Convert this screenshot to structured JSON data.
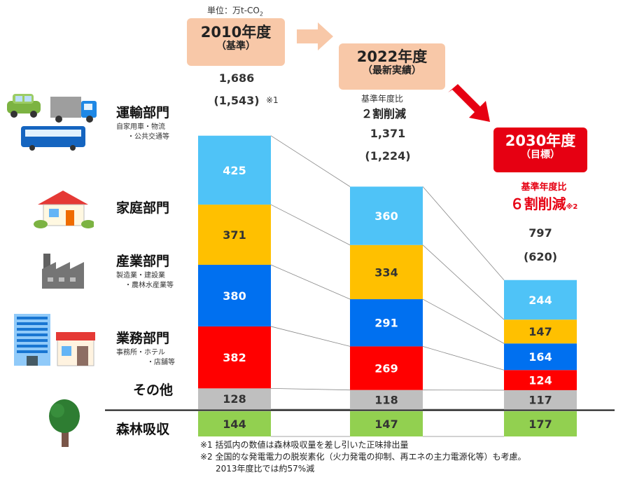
{
  "unit_label": "単位：万t-CO",
  "unit_sub": "2",
  "headers": {
    "y2010": {
      "title": "2010年度",
      "sub": "（基準）"
    },
    "y2022": {
      "title": "2022年度",
      "sub": "（最新実績）"
    },
    "y2030": {
      "title": "2030年度",
      "sub": "（目標）"
    }
  },
  "reduction_2022": {
    "line1": "基準年度比",
    "line2": "２割削減"
  },
  "reduction_2030": {
    "line1": "基準年度比",
    "line2": "６割削減",
    "mark": "※2"
  },
  "totals": {
    "y2010": {
      "gross": "1,686",
      "net": "(1,543)",
      "mark": "※1"
    },
    "y2022": {
      "gross": "1,371",
      "net": "(1,224)"
    },
    "y2030": {
      "gross": "797",
      "net": "(620)"
    }
  },
  "sectors": {
    "transport": {
      "label": "運輸部門",
      "sub1": "自家用車・物流",
      "sub2": "・公共交通等"
    },
    "household": {
      "label": "家庭部門"
    },
    "industry": {
      "label": "産業部門",
      "sub1": "製造業・建設業",
      "sub2": "・農林水産業等"
    },
    "business": {
      "label": "業務部門",
      "sub1": "事務所・ホテル",
      "sub2": "・店舗等"
    },
    "other": {
      "label": "その他"
    },
    "forest": {
      "label": "森林吸収"
    }
  },
  "chart_data": {
    "type": "bar",
    "stacked": true,
    "categories": [
      "2010年度",
      "2022年度",
      "2030年度"
    ],
    "series": [
      {
        "name": "運輸部門",
        "color": "#4fc3f7",
        "values": [
          425,
          360,
          244
        ]
      },
      {
        "name": "家庭部門",
        "color": "#ffc000",
        "values": [
          371,
          334,
          147
        ]
      },
      {
        "name": "産業部門",
        "color": "#0070f0",
        "values": [
          380,
          291,
          164
        ]
      },
      {
        "name": "業務部門",
        "color": "#ff0000",
        "values": [
          382,
          269,
          124
        ]
      },
      {
        "name": "その他",
        "color": "#bfbfbf",
        "values": [
          128,
          118,
          117
        ]
      },
      {
        "name": "森林吸収",
        "color": "#92d050",
        "values": [
          144,
          147,
          177
        ]
      }
    ]
  },
  "notes": {
    "n1": "※1 括弧内の数値は森林吸収量を差し引いた正味排出量",
    "n2": "※2 全国的な発電電力の脱炭素化（火力発電の抑制、再エネの主力電源化等）も考慮。",
    "n3": "2013年度比では約57%減"
  },
  "icons": [
    "cars-icon",
    "house-icon",
    "factory-icon",
    "office-building-icon",
    "tree-icon"
  ]
}
